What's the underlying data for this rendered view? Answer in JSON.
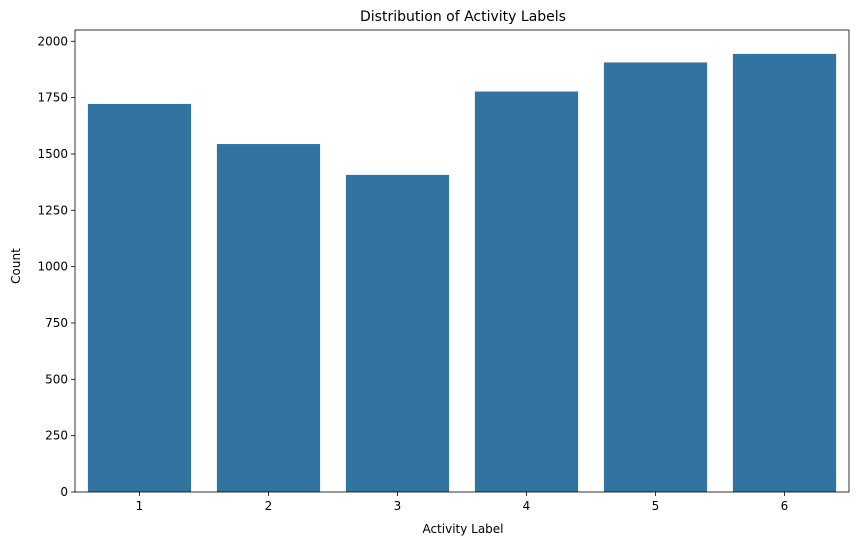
{
  "chart_data": {
    "type": "bar",
    "title": "Distribution of Activity Labels",
    "xlabel": "Activity Label",
    "ylabel": "Count",
    "categories": [
      "1",
      "2",
      "3",
      "4",
      "5",
      "6"
    ],
    "values": [
      1722,
      1544,
      1407,
      1777,
      1906,
      1944
    ],
    "ylim": [
      0,
      2050
    ],
    "yticks": [
      0,
      250,
      500,
      750,
      1000,
      1250,
      1500,
      1750,
      2000
    ],
    "ytick_labels": [
      "0",
      "250",
      "500",
      "750",
      "1000",
      "1250",
      "1500",
      "1750",
      "2000"
    ],
    "bar_color": "#3274a1",
    "grid": false,
    "legend": "none"
  }
}
